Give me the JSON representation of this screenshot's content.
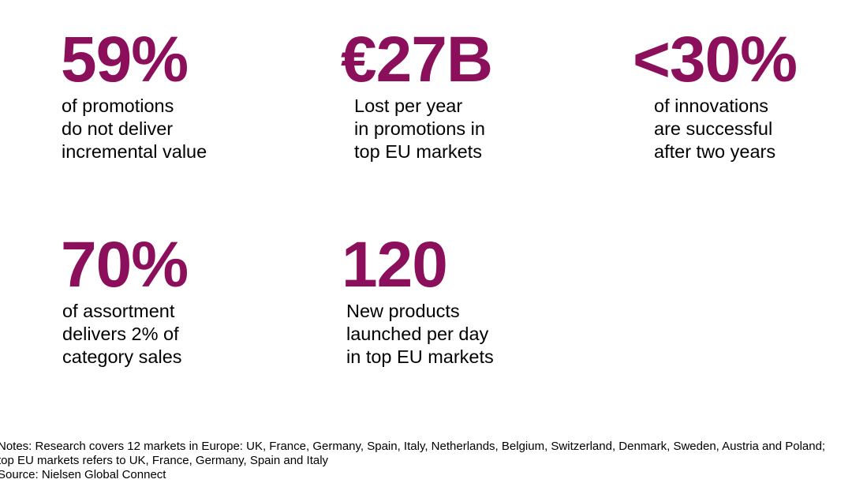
{
  "accent_color": "#8b0f5a",
  "stats": [
    {
      "value": "59%",
      "lines": [
        "of promotions",
        "do not deliver",
        "incremental value"
      ]
    },
    {
      "value": "€27B",
      "lines": [
        "Lost per year",
        "in promotions in",
        "top EU markets"
      ]
    },
    {
      "value": "<30%",
      "lines": [
        "of innovations",
        "are successful",
        "after two years"
      ]
    },
    {
      "value": "70%",
      "lines": [
        "of assortment",
        "delivers 2% of",
        "category sales"
      ]
    },
    {
      "value": "120",
      "lines": [
        "New products",
        "launched per day",
        "in top EU markets"
      ]
    }
  ],
  "footer": {
    "notes_1": "Notes: Research covers 12 markets in Europe: UK, France, Germany, Spain, Italy, Netherlands, Belgium, Switzerland, Denmark, Sweden, Austria and Poland;",
    "notes_2": "top EU markets refers to UK, France, Germany, Spain and Italy",
    "source": "Source: Nielsen Global Connect"
  }
}
